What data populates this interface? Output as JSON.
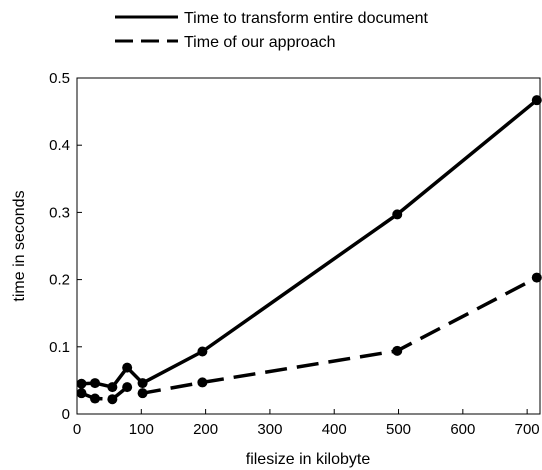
{
  "chart_data": {
    "type": "line",
    "xlabel": "filesize in kilobyte",
    "ylabel": "time in seconds",
    "xlim": [
      0,
      720
    ],
    "ylim": [
      0,
      0.5
    ],
    "x_ticks": [
      "0",
      "100",
      "200",
      "300",
      "400",
      "500",
      "600",
      "700"
    ],
    "y_ticks": [
      "0",
      "0.1",
      "0.2",
      "0.3",
      "0.4",
      "0.5"
    ],
    "legend_position": "top-center, outside plot area",
    "grid": false,
    "series": [
      {
        "name": "Time to transform entire document",
        "line_style": "solid",
        "color": "#000000",
        "x": [
          7,
          28,
          55,
          78,
          102,
          195,
          498,
          715
        ],
        "y": [
          0.045,
          0.046,
          0.04,
          0.069,
          0.046,
          0.093,
          0.297,
          0.467
        ]
      },
      {
        "name": "Time of our approach",
        "line_style": "dashed",
        "color": "#000000",
        "x": [
          7,
          28,
          55,
          78,
          102,
          195,
          498,
          715
        ],
        "y": [
          0.031,
          0.023,
          0.022,
          0.04,
          0.031,
          0.047,
          0.094,
          0.203
        ]
      }
    ]
  }
}
